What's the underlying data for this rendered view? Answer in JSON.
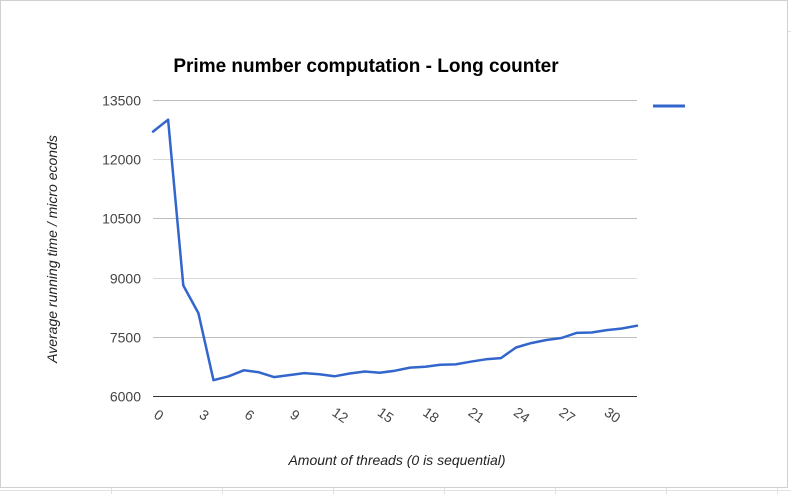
{
  "chart_data": {
    "type": "line",
    "title": "Prime number computation - Long counter",
    "xlabel": "Amount of threads (0 is sequential)",
    "ylabel": "Average running time / micro econds",
    "ylim": [
      6000,
      13500
    ],
    "yticks": [
      "6000",
      "7500",
      "9000",
      "10500",
      "12000",
      "13500"
    ],
    "xlim": [
      0,
      32
    ],
    "xticks": [
      "0",
      "3",
      "6",
      "9",
      "12",
      "15",
      "18",
      "21",
      "24",
      "27",
      "30"
    ],
    "grid": true,
    "legend": "top-right",
    "series": [
      {
        "color": "#3366cc",
        "x": [
          0,
          1,
          2,
          3,
          4,
          5,
          6,
          7,
          8,
          9,
          10,
          11,
          12,
          13,
          14,
          15,
          16,
          17,
          18,
          19,
          20,
          21,
          22,
          23,
          24,
          25,
          26,
          27,
          28,
          29,
          30,
          31,
          32
        ],
        "values": [
          12700,
          13000,
          8800,
          8100,
          6400,
          6500,
          6650,
          6600,
          6480,
          6530,
          6580,
          6550,
          6500,
          6570,
          6620,
          6590,
          6640,
          6720,
          6740,
          6790,
          6800,
          6870,
          6930,
          6960,
          7230,
          7340,
          7420,
          7470,
          7600,
          7610,
          7670,
          7710,
          7780
        ]
      }
    ]
  }
}
